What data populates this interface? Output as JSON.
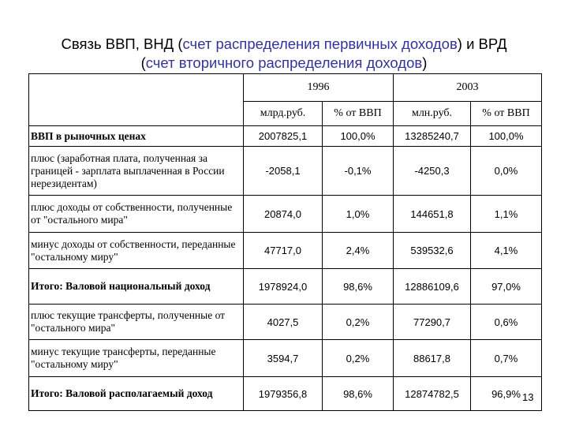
{
  "title": {
    "line1_prefix": "Связь ВВП, ВНД (",
    "line1_highlight": "счет распределения первичных доходов",
    "line1_suffix": ") и ВРД",
    "line2_prefix": "(",
    "line2_highlight": "счет вторичного распределения доходов",
    "line2_suffix": ")"
  },
  "table": {
    "year_1996": "1996",
    "year_2003": "2003",
    "col_headers": [
      "млрд.руб.",
      "% от ВВП",
      "млн.руб.",
      "% от ВВП"
    ],
    "rows": [
      {
        "label": "ВВП в рыночных ценах",
        "v1": "2007825,1",
        "p1": "100,0%",
        "v2": "13285240,7",
        "p2": "100,0%"
      },
      {
        "label": "плюс (заработная плата, полученная за границей - зарплата выплаченная в России нерезидентам)",
        "v1": "-2058,1",
        "p1": "-0,1%",
        "v2": "-4250,3",
        "p2": "0,0%"
      },
      {
        "label": "плюс доходы от собственности, полученные от \"остального мира\"",
        "v1": "20874,0",
        "p1": "1,0%",
        "v2": "144651,8",
        "p2": "1,1%"
      },
      {
        "label": "минус доходы от собственности, переданные \"остальному миру\"",
        "v1": "47717,0",
        "p1": "2,4%",
        "v2": "539532,6",
        "p2": "4,1%"
      },
      {
        "label": "Итого: Валовой национальный доход",
        "v1": "1978924,0",
        "p1": "98,6%",
        "v2": "12886109,6",
        "p2": "97,0%"
      },
      {
        "label": "плюс текущие трансферты, полученные от \"остального мира\"",
        "v1": "4027,5",
        "p1": "0,2%",
        "v2": "77290,7",
        "p2": "0,6%"
      },
      {
        "label": "минус текущие трансферты, переданные \"остальному миру\"",
        "v1": "3594,7",
        "p1": "0,2%",
        "v2": "88617,8",
        "p2": "0,7%"
      },
      {
        "label": "Итого: Валовой располагаемый доход",
        "v1": "1979356,8",
        "p1": "98,6%",
        "v2": "12874782,5",
        "p2": "96,9%"
      }
    ]
  },
  "page_number": "13"
}
